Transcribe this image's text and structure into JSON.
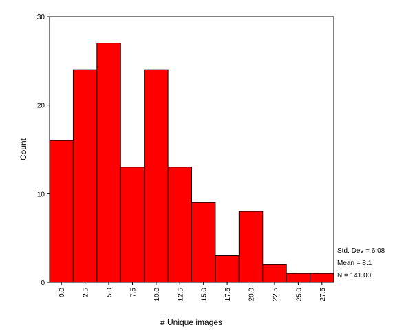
{
  "chart_data": {
    "type": "bar",
    "categories": [
      "0.0",
      "2.5",
      "5.0",
      "7.5",
      "10.0",
      "12.5",
      "15.0",
      "17.5",
      "20.0",
      "22.5",
      "25.0",
      "27.5"
    ],
    "values": [
      16,
      24,
      27,
      13,
      24,
      13,
      9,
      3,
      8,
      2,
      1,
      1
    ],
    "ylabel": "Count",
    "xlabel": "# Unique images",
    "ylim": [
      0,
      30
    ],
    "yticks": [
      "0",
      "10",
      "20",
      "30"
    ],
    "bar_color": "#ff0000",
    "grid": false,
    "stats": {
      "std_dev": "Std. Dev = 6.08",
      "mean": "Mean = 8.1",
      "n": "N = 141.00"
    }
  }
}
